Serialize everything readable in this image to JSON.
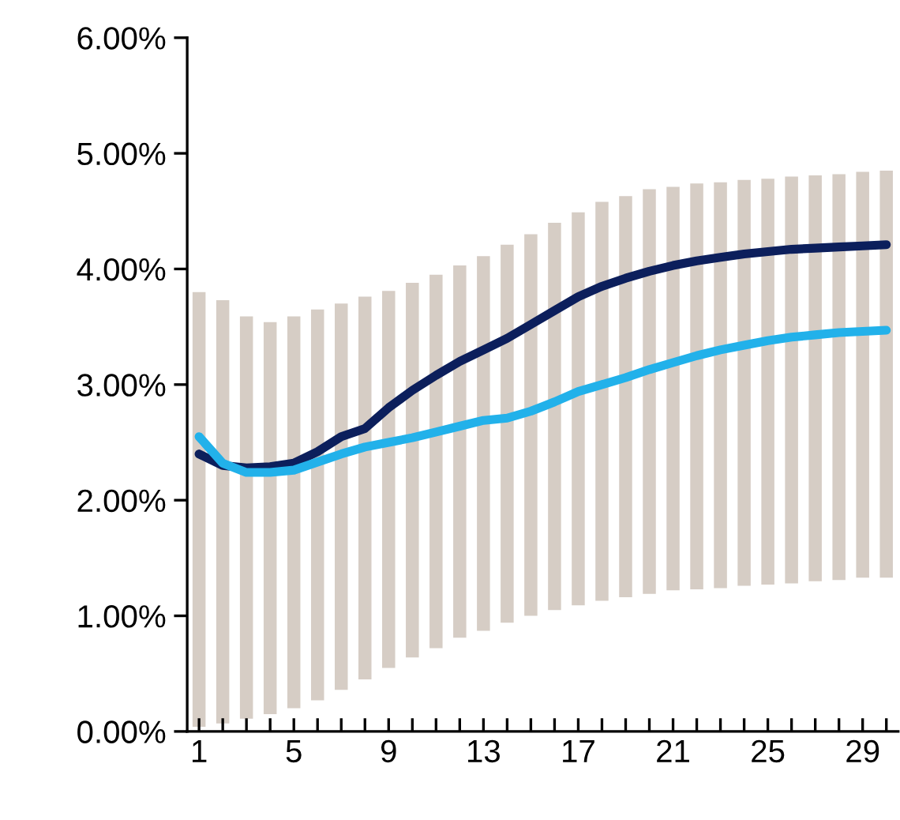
{
  "chart_data": {
    "type": "bar",
    "categories": [
      "1",
      null,
      null,
      null,
      "5",
      null,
      null,
      null,
      "9",
      null,
      null,
      null,
      "13",
      null,
      null,
      null,
      "17",
      null,
      null,
      null,
      "21",
      null,
      null,
      null,
      "25",
      null,
      null,
      null,
      "29",
      null
    ],
    "series": [
      {
        "color": "#d6cdc5",
        "base": [
          0.04,
          0.07,
          0.11,
          0.15,
          0.2,
          0.27,
          0.36,
          0.45,
          0.55,
          0.64,
          0.72,
          0.81,
          0.87,
          0.94,
          1.0,
          1.05,
          1.09,
          1.13,
          1.16,
          1.19,
          1.22,
          1.23,
          1.24,
          1.26,
          1.27,
          1.28,
          1.3,
          1.31,
          1.33,
          1.33
        ],
        "values": [
          3.76,
          3.66,
          3.48,
          3.39,
          3.39,
          3.38,
          3.34,
          3.31,
          3.26,
          3.24,
          3.23,
          3.22,
          3.24,
          3.27,
          3.3,
          3.35,
          3.4,
          3.45,
          3.47,
          3.5,
          3.49,
          3.51,
          3.51,
          3.51,
          3.51,
          3.52,
          3.51,
          3.51,
          3.51,
          3.52
        ]
      },
      {
        "type": "line",
        "color": "#0c1f5c",
        "values": [
          2.4,
          2.3,
          2.28,
          2.29,
          2.32,
          2.42,
          2.55,
          2.62,
          2.8,
          2.95,
          3.08,
          3.2,
          3.3,
          3.4,
          3.52,
          3.64,
          3.76,
          3.85,
          3.92,
          3.98,
          4.03,
          4.07,
          4.1,
          4.13,
          4.15,
          4.17,
          4.18,
          4.19,
          4.2,
          4.21
        ]
      },
      {
        "type": "line",
        "color": "#22b1ea",
        "values": [
          2.55,
          2.32,
          2.24,
          2.24,
          2.26,
          2.33,
          2.4,
          2.46,
          2.5,
          2.54,
          2.59,
          2.64,
          2.69,
          2.71,
          2.77,
          2.85,
          2.94,
          3.0,
          3.06,
          3.13,
          3.19,
          3.25,
          3.3,
          3.34,
          3.38,
          3.41,
          3.43,
          3.45,
          3.46,
          3.47
        ]
      }
    ],
    "ylim": [
      0,
      6
    ],
    "yticks": [
      {
        "value": 0,
        "label": "0.00%"
      },
      {
        "value": 1,
        "label": "1.00%"
      },
      {
        "value": 2,
        "label": "2.00%"
      },
      {
        "value": 3,
        "label": "3.00%"
      },
      {
        "value": 4,
        "label": "4.00%"
      },
      {
        "value": 5,
        "label": "5.00%"
      },
      {
        "value": 6,
        "label": "6.00%"
      }
    ],
    "grid": false,
    "legend": false
  }
}
